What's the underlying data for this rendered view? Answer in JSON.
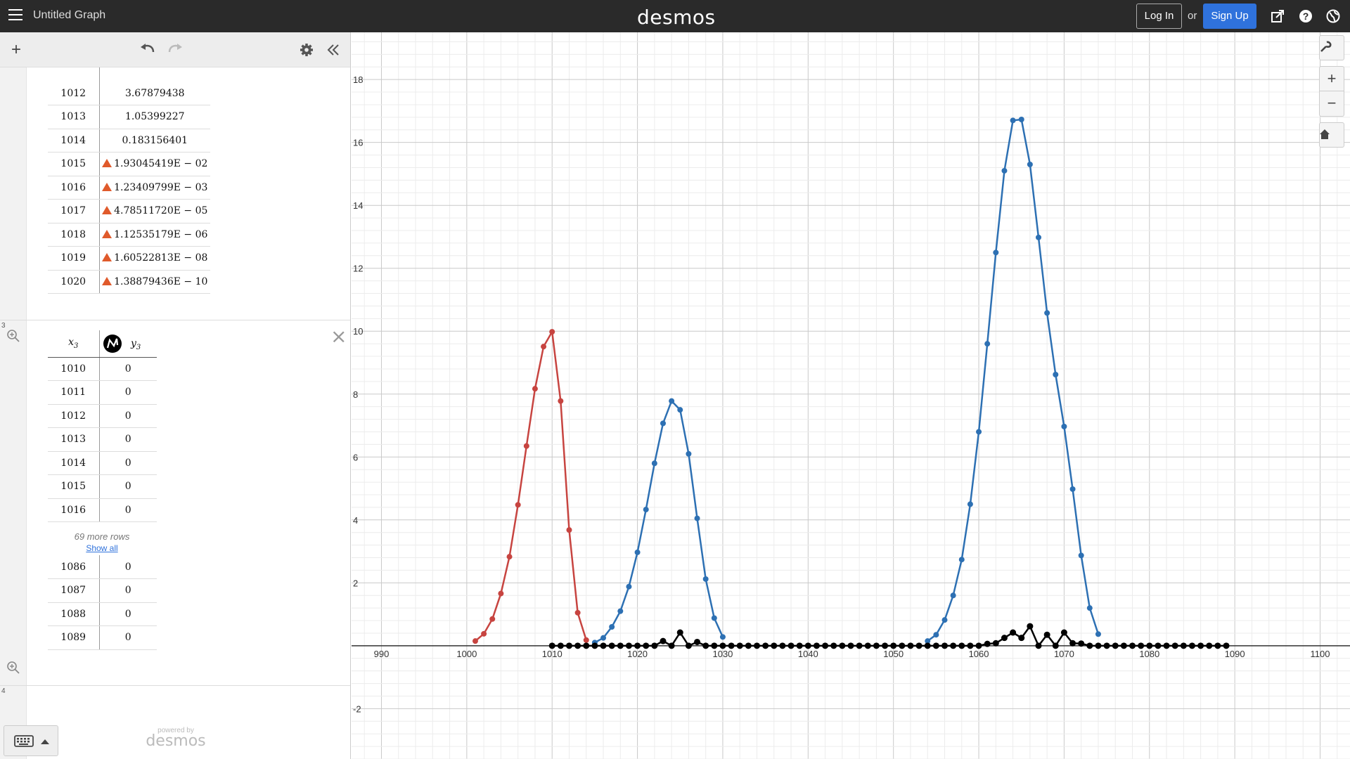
{
  "app": {
    "title": "Untitled Graph",
    "logo": "desmos",
    "login_label": "Log In",
    "or_label": "or",
    "signup_label": "Sign Up",
    "icons": [
      "share-icon",
      "help-icon",
      "globe-icon"
    ]
  },
  "toolbar": {
    "add_icon": "plus-icon",
    "undo_icon": "undo-icon",
    "redo_icon": "redo-icon",
    "settings_icon": "gear-icon",
    "collapse_icon": "double-chevron-left-icon"
  },
  "table2": {
    "rows": [
      {
        "x": "1012",
        "y": "3.67879438",
        "warn": false
      },
      {
        "x": "1013",
        "y": "1.05399227",
        "warn": false
      },
      {
        "x": "1014",
        "y": "0.183156401",
        "warn": false
      },
      {
        "x": "1015",
        "y": "1.93045419E − 02",
        "warn": true
      },
      {
        "x": "1016",
        "y": "1.23409799E − 03",
        "warn": true
      },
      {
        "x": "1017",
        "y": "4.78511720E − 05",
        "warn": true
      },
      {
        "x": "1018",
        "y": "1.12535179E − 06",
        "warn": true
      },
      {
        "x": "1019",
        "y": "1.60522813E − 08",
        "warn": true
      },
      {
        "x": "1020",
        "y": "1.38879436E − 10",
        "warn": true
      }
    ]
  },
  "table3": {
    "index": "3",
    "header_x": "x",
    "header_x_sub": "3",
    "header_y": "y",
    "header_y_sub": "3",
    "top_rows": [
      {
        "x": "1010",
        "y": "0"
      },
      {
        "x": "1011",
        "y": "0"
      },
      {
        "x": "1012",
        "y": "0"
      },
      {
        "x": "1013",
        "y": "0"
      },
      {
        "x": "1014",
        "y": "0"
      },
      {
        "x": "1015",
        "y": "0"
      },
      {
        "x": "1016",
        "y": "0"
      }
    ],
    "more_rows": "69 more rows",
    "show_all": "Show all",
    "bottom_rows": [
      {
        "x": "1086",
        "y": "0"
      },
      {
        "x": "1087",
        "y": "0"
      },
      {
        "x": "1088",
        "y": "0"
      },
      {
        "x": "1089",
        "y": "0"
      }
    ]
  },
  "expr4_index": "4",
  "powered_by": "powered by",
  "powered_logo": "desmos",
  "graph": {
    "x_ticks": [
      990,
      1000,
      1010,
      1020,
      1030,
      1040,
      1050,
      1060,
      1070,
      1080,
      1090,
      1100
    ],
    "y_ticks": [
      18,
      16,
      14,
      12,
      10,
      8,
      6,
      4,
      2,
      -2
    ],
    "xlim": [
      986.5,
      1103.5
    ],
    "ylim": [
      -3.6,
      19.5
    ],
    "colors": {
      "red": "#c74440",
      "blue": "#2d70b3",
      "black": "#000000"
    },
    "sidebar_icons": [
      "wrench-icon",
      "zoom-in-icon",
      "zoom-out-icon",
      "home-icon"
    ]
  },
  "chart_data": {
    "type": "scatter",
    "xlim": [
      990,
      1100
    ],
    "ylim": [
      -2,
      18
    ],
    "grid": true,
    "series": [
      {
        "color": "#c74440",
        "x": [
          1001,
          1002,
          1003,
          1004,
          1005,
          1006,
          1007,
          1008,
          1009,
          1010,
          1011,
          1012,
          1013,
          1014
        ],
        "y": [
          0.15,
          0.38,
          0.85,
          1.66,
          2.83,
          4.48,
          6.35,
          8.17,
          9.51,
          9.98,
          7.78,
          3.68,
          1.05,
          0.18
        ]
      },
      {
        "color": "#2d70b3",
        "x": [
          1015,
          1016,
          1017,
          1018,
          1019,
          1020,
          1021,
          1022,
          1023,
          1024,
          1025,
          1026,
          1027,
          1028,
          1029,
          1030
        ],
        "y": [
          0.1,
          0.25,
          0.6,
          1.1,
          1.88,
          2.97,
          4.33,
          5.8,
          7.07,
          7.78,
          7.5,
          6.1,
          4.05,
          2.12,
          0.88,
          0.28
        ]
      },
      {
        "color": "#2d70b3",
        "x": [
          1054,
          1055,
          1056,
          1057,
          1058,
          1059,
          1060,
          1061,
          1062,
          1063,
          1064,
          1065,
          1066,
          1067,
          1068,
          1069,
          1070,
          1071,
          1072,
          1073,
          1074
        ],
        "y": [
          0.15,
          0.35,
          0.82,
          1.6,
          2.74,
          4.5,
          6.8,
          9.6,
          12.5,
          15.1,
          16.7,
          16.73,
          15.3,
          12.98,
          10.58,
          8.62,
          6.97,
          4.98,
          2.87,
          1.2,
          0.37
        ]
      },
      {
        "color": "#000000",
        "x": [
          1010,
          1011,
          1012,
          1013,
          1014,
          1015,
          1016,
          1017,
          1018,
          1019,
          1020,
          1021,
          1022,
          1023,
          1024,
          1025,
          1026,
          1027,
          1028,
          1029,
          1030,
          1031,
          1032,
          1033,
          1034,
          1035,
          1036,
          1037,
          1038,
          1039,
          1040,
          1041,
          1042,
          1043,
          1044,
          1045,
          1046,
          1047,
          1048,
          1049,
          1050,
          1051,
          1052,
          1053,
          1054,
          1055,
          1056,
          1057,
          1058,
          1059,
          1060,
          1061,
          1062,
          1063,
          1064,
          1065,
          1066,
          1067,
          1068,
          1069,
          1070,
          1071,
          1072,
          1073,
          1074,
          1075,
          1076,
          1077,
          1078,
          1079,
          1080,
          1081,
          1082,
          1083,
          1084,
          1085,
          1086,
          1087,
          1088,
          1089
        ],
        "y": [
          0,
          0,
          0,
          0,
          0,
          0,
          0,
          0,
          0,
          0,
          0,
          0,
          0,
          0.15,
          0,
          0.42,
          0,
          0.12,
          0,
          0,
          0,
          0,
          0,
          0,
          0,
          0,
          0,
          0,
          0,
          0,
          0,
          0,
          0,
          0,
          0,
          0,
          0,
          0,
          0,
          0,
          0,
          0,
          0,
          0,
          0,
          0,
          0,
          0,
          0,
          0,
          0,
          0.06,
          0.08,
          0.25,
          0.42,
          0.25,
          0.62,
          0,
          0.35,
          0,
          0.42,
          0.08,
          0.07,
          0,
          0,
          0,
          0,
          0,
          0,
          0,
          0,
          0,
          0,
          0,
          0,
          0,
          0,
          0,
          0,
          0
        ]
      }
    ]
  }
}
